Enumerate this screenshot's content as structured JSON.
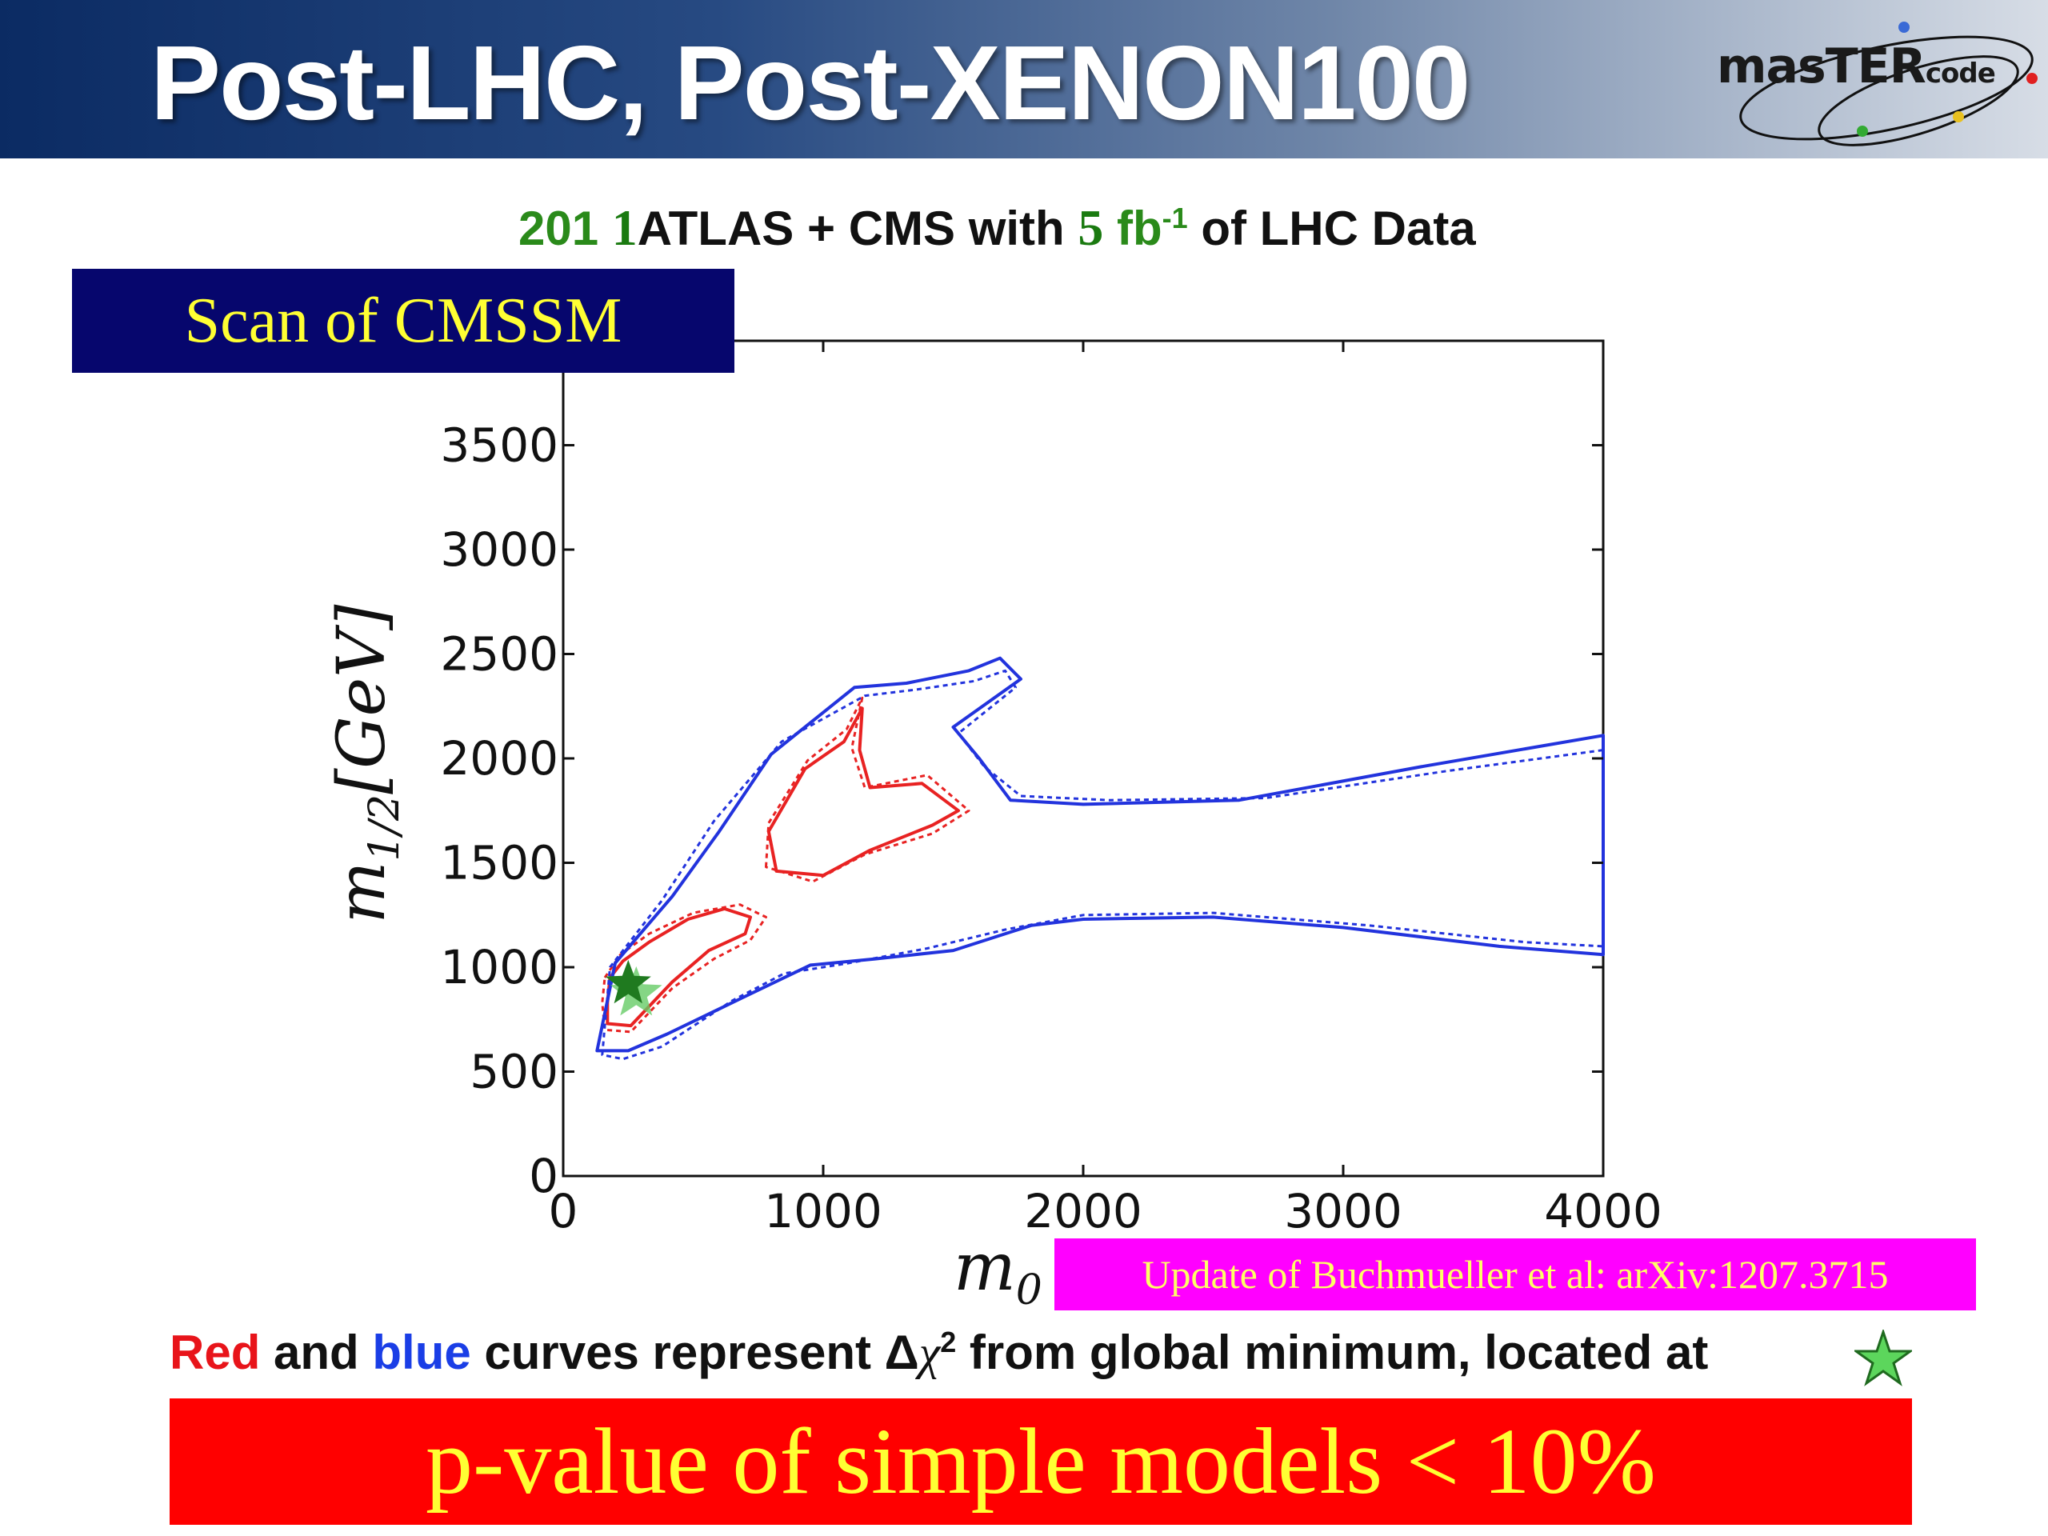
{
  "slide": {
    "title": "Post-LHC, Post-XENON100",
    "logo": {
      "main": "masTER",
      "small": "code",
      "icon": "mastercode-orbit-logo"
    },
    "subtitle": {
      "year_a": "201",
      "year_b": "1",
      "experiments": "ATLAS + CMS with",
      "lumi_num": "5",
      "lumi_unit": "fb",
      "lumi_exp": "-1",
      "rest": "of LHC Data"
    },
    "scan_label": "Scan of CMSSM",
    "reference": "Update of Buchmueller et al: arXiv:1207.3715",
    "caption": {
      "red_word": "Red",
      "and": "and",
      "blue_word": "blue",
      "middle": "curves represent",
      "delta": "Δ",
      "chi": "χ",
      "sq": "2",
      "end": "from global minimum, located at"
    },
    "conclusion": "p-value of simple models < 10%",
    "colors": {
      "red_curve": "#e82222",
      "blue_curve": "#2233dd",
      "best_fit_star": "#1f7a1f",
      "light_star": "#66cc66"
    }
  },
  "chart_data": {
    "type": "contour",
    "xlabel": "m_0",
    "ylabel": "m_{1/2}[GeV]",
    "xlim": [
      0,
      4000
    ],
    "ylim": [
      0,
      4000
    ],
    "x_ticks": [
      "0",
      "1000",
      "2000",
      "3000",
      "4000"
    ],
    "y_ticks": [
      "0",
      "500",
      "1000",
      "1500",
      "2000",
      "2500",
      "3000",
      "3500"
    ],
    "best_fit": {
      "x": 250,
      "y": 920
    },
    "series": [
      {
        "color": "red",
        "style": "solid",
        "regions": [
          [
            [
              180,
              950
            ],
            [
              230,
              1030
            ],
            [
              330,
              1120
            ],
            [
              480,
              1230
            ],
            [
              620,
              1280
            ],
            [
              720,
              1240
            ],
            [
              700,
              1160
            ],
            [
              560,
              1080
            ],
            [
              420,
              930
            ],
            [
              260,
              720
            ],
            [
              170,
              730
            ],
            [
              170,
              830
            ]
          ],
          [
            [
              820,
              1460
            ],
            [
              790,
              1650
            ],
            [
              930,
              1950
            ],
            [
              1080,
              2080
            ],
            [
              1150,
              2240
            ],
            [
              1140,
              2040
            ],
            [
              1180,
              1860
            ],
            [
              1380,
              1880
            ],
            [
              1520,
              1750
            ],
            [
              1420,
              1680
            ],
            [
              1180,
              1560
            ],
            [
              1000,
              1440
            ]
          ]
        ]
      },
      {
        "color": "red",
        "style": "dashed",
        "regions": [
          [
            [
              160,
              950
            ],
            [
              220,
              1060
            ],
            [
              330,
              1160
            ],
            [
              500,
              1260
            ],
            [
              680,
              1300
            ],
            [
              780,
              1240
            ],
            [
              720,
              1130
            ],
            [
              580,
              1040
            ],
            [
              420,
              900
            ],
            [
              260,
              690
            ],
            [
              160,
              700
            ],
            [
              150,
              830
            ]
          ],
          [
            [
              780,
              1480
            ],
            [
              790,
              1690
            ],
            [
              940,
              1990
            ],
            [
              1090,
              2140
            ],
            [
              1150,
              2290
            ],
            [
              1110,
              2050
            ],
            [
              1160,
              1860
            ],
            [
              1400,
              1920
            ],
            [
              1560,
              1750
            ],
            [
              1420,
              1640
            ],
            [
              1160,
              1540
            ],
            [
              960,
              1410
            ]
          ]
        ]
      },
      {
        "color": "blue",
        "style": "solid",
        "regions": [
          [
            [
              130,
              600
            ],
            [
              200,
              1020
            ],
            [
              420,
              1340
            ],
            [
              600,
              1650
            ],
            [
              800,
              2020
            ],
            [
              1120,
              2340
            ],
            [
              1320,
              2360
            ],
            [
              1560,
              2420
            ],
            [
              1680,
              2480
            ],
            [
              1760,
              2380
            ],
            [
              1500,
              2150
            ],
            [
              1600,
              2000
            ],
            [
              1720,
              1800
            ],
            [
              2000,
              1780
            ],
            [
              2600,
              1800
            ],
            [
              3300,
              1960
            ],
            [
              4000,
              2110
            ],
            [
              4000,
              1060
            ],
            [
              3600,
              1100
            ],
            [
              3000,
              1190
            ],
            [
              2500,
              1240
            ],
            [
              2000,
              1230
            ],
            [
              1800,
              1200
            ],
            [
              1500,
              1080
            ],
            [
              1200,
              1040
            ],
            [
              950,
              1010
            ],
            [
              700,
              860
            ],
            [
              400,
              680
            ],
            [
              250,
              600
            ]
          ]
        ]
      },
      {
        "color": "blue",
        "style": "dashed",
        "regions": [
          [
            [
              150,
              580
            ],
            [
              180,
              1000
            ],
            [
              380,
              1320
            ],
            [
              580,
              1700
            ],
            [
              840,
              2080
            ],
            [
              1160,
              2300
            ],
            [
              1360,
              2330
            ],
            [
              1580,
              2370
            ],
            [
              1700,
              2420
            ],
            [
              1740,
              2340
            ],
            [
              1520,
              2120
            ],
            [
              1620,
              1960
            ],
            [
              1760,
              1820
            ],
            [
              2100,
              1800
            ],
            [
              2700,
              1810
            ],
            [
              3400,
              1940
            ],
            [
              4000,
              2040
            ],
            [
              4000,
              1100
            ],
            [
              3700,
              1120
            ],
            [
              3100,
              1200
            ],
            [
              2500,
              1260
            ],
            [
              2000,
              1250
            ],
            [
              1700,
              1180
            ],
            [
              1400,
              1090
            ],
            [
              1100,
              1020
            ],
            [
              850,
              970
            ],
            [
              650,
              840
            ],
            [
              380,
              620
            ],
            [
              230,
              560
            ]
          ]
        ]
      }
    ]
  }
}
